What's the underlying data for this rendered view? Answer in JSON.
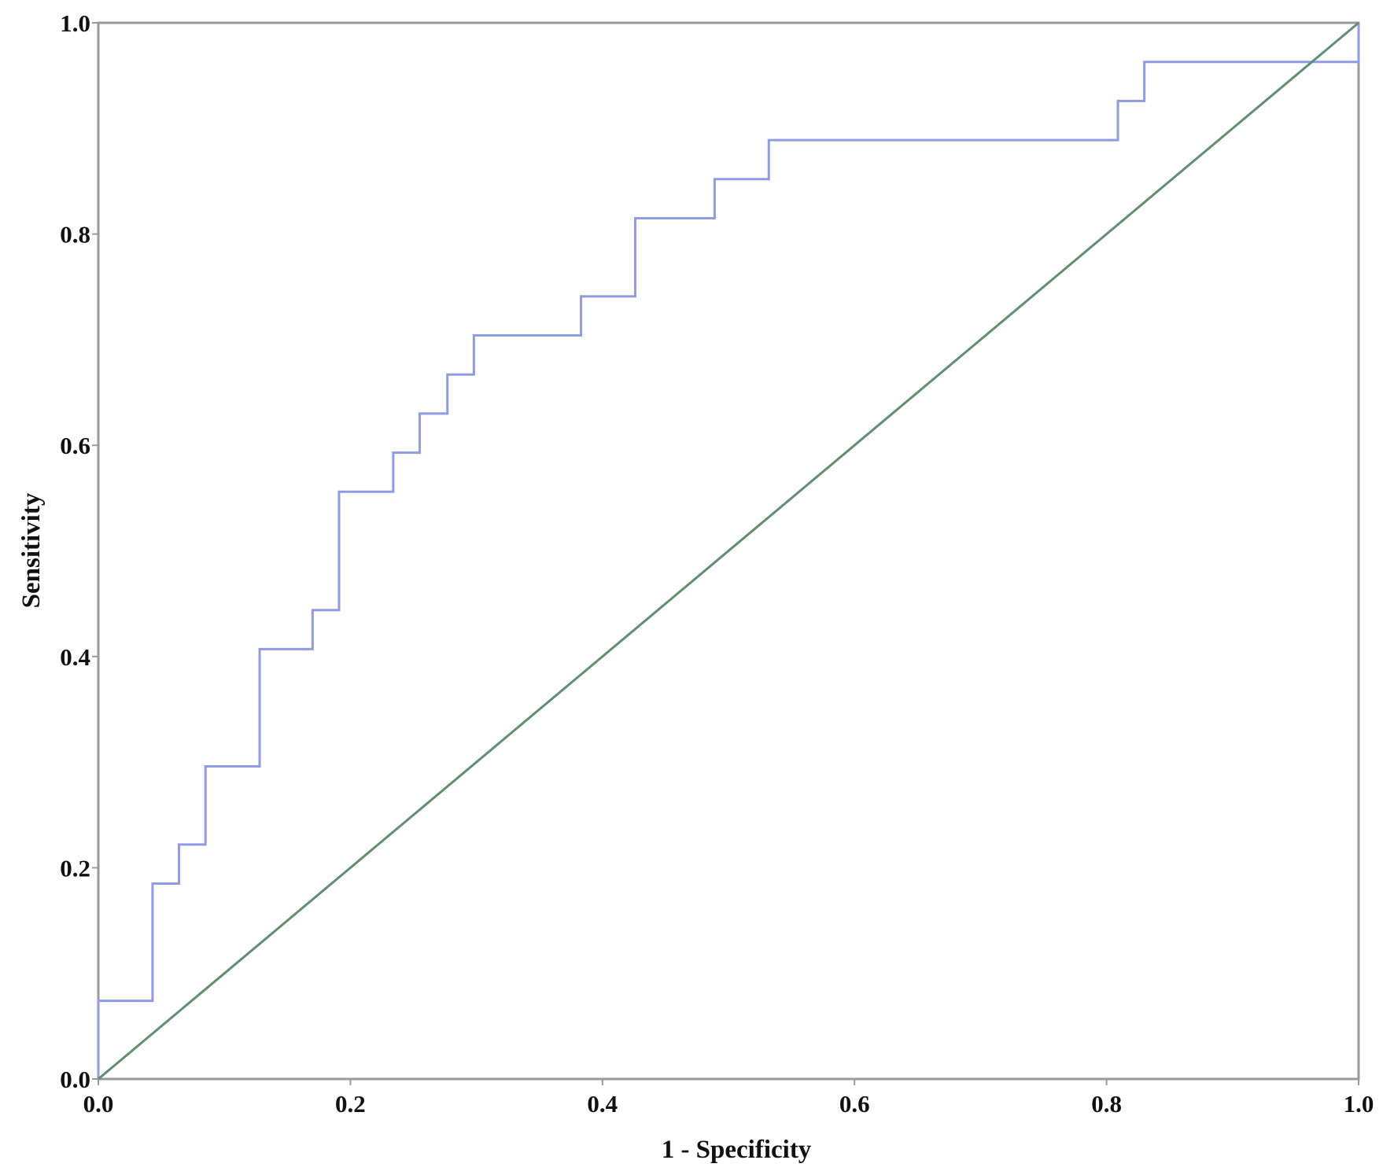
{
  "chart_data": {
    "type": "line",
    "title": "",
    "xlabel": "1 - Specificity",
    "ylabel": "Sensitivity",
    "xlim": [
      0,
      1
    ],
    "ylim": [
      0,
      1
    ],
    "xticks": [
      "0.0",
      "0.2",
      "0.4",
      "0.6",
      "0.8",
      "1.0"
    ],
    "yticks": [
      "0.0",
      "0.2",
      "0.4",
      "0.6",
      "0.8",
      "1.0"
    ],
    "grid": false,
    "legend": "none",
    "series": [
      {
        "style": "step",
        "color": "#8f9be6",
        "points": [
          [
            0,
            0
          ],
          [
            0,
            0.074
          ],
          [
            0.043,
            0.074
          ],
          [
            0.043,
            0.185
          ],
          [
            0.064,
            0.185
          ],
          [
            0.064,
            0.222
          ],
          [
            0.085,
            0.222
          ],
          [
            0.085,
            0.296
          ],
          [
            0.128,
            0.296
          ],
          [
            0.128,
            0.407
          ],
          [
            0.17,
            0.407
          ],
          [
            0.17,
            0.444
          ],
          [
            0.191,
            0.444
          ],
          [
            0.191,
            0.556
          ],
          [
            0.234,
            0.556
          ],
          [
            0.234,
            0.593
          ],
          [
            0.255,
            0.593
          ],
          [
            0.255,
            0.63
          ],
          [
            0.277,
            0.63
          ],
          [
            0.277,
            0.667
          ],
          [
            0.298,
            0.667
          ],
          [
            0.298,
            0.704
          ],
          [
            0.383,
            0.704
          ],
          [
            0.383,
            0.741
          ],
          [
            0.426,
            0.741
          ],
          [
            0.426,
            0.815
          ],
          [
            0.489,
            0.815
          ],
          [
            0.489,
            0.852
          ],
          [
            0.532,
            0.852
          ],
          [
            0.532,
            0.889
          ],
          [
            0.809,
            0.889
          ],
          [
            0.809,
            0.926
          ],
          [
            0.83,
            0.926
          ],
          [
            0.83,
            0.963
          ],
          [
            1,
            0.963
          ],
          [
            1,
            1
          ]
        ]
      },
      {
        "style": "reference",
        "color": "#5f8f6f",
        "points": [
          [
            0,
            0
          ],
          [
            1,
            1
          ]
        ]
      }
    ]
  }
}
